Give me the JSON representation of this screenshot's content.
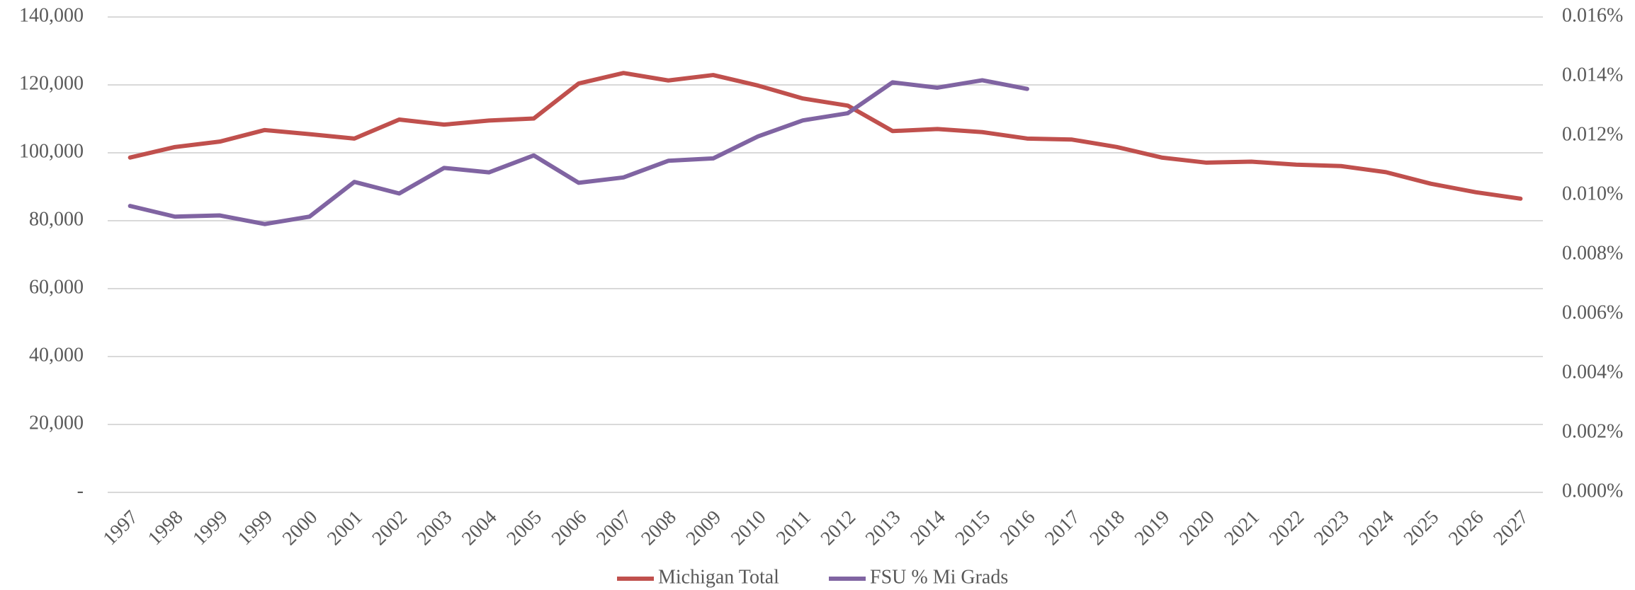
{
  "chart_data": {
    "type": "line",
    "categories": [
      "1997",
      "1998",
      "1999",
      "1999",
      "2000",
      "2001",
      "2002",
      "2003",
      "2004",
      "2005",
      "2006",
      "2007",
      "2008",
      "2009",
      "2010",
      "2011",
      "2012",
      "2013",
      "2014",
      "2015",
      "2016",
      "2017",
      "2018",
      "2019",
      "2020",
      "2021",
      "2022",
      "2023",
      "2024",
      "2025",
      "2026",
      "2027"
    ],
    "series": [
      {
        "name": "Michigan Total",
        "color": "#c0504d",
        "axis": "y",
        "values": [
          98600,
          101700,
          103300,
          106700,
          105500,
          104200,
          109800,
          108300,
          109500,
          110100,
          120400,
          123500,
          121300,
          122900,
          119800,
          116000,
          113900,
          106400,
          107000,
          106100,
          104200,
          103900,
          101700,
          98600,
          97100,
          97400,
          96500,
          96100,
          94300,
          90900,
          88400,
          86500
        ]
      },
      {
        "name": "FSU % Mi Grads",
        "color": "#8064a2",
        "axis": "y2",
        "values": [
          0.00964,
          0.00928,
          0.00932,
          0.00903,
          0.00928,
          0.01045,
          0.01006,
          0.01092,
          0.01077,
          0.01134,
          0.01042,
          0.0106,
          0.01116,
          0.01124,
          0.01198,
          0.01252,
          0.01276,
          0.0138,
          0.01362,
          0.01387,
          0.01358,
          null,
          null,
          null,
          null,
          null,
          null,
          null,
          null,
          null,
          null,
          null
        ]
      }
    ],
    "ylim": [
      0,
      140000
    ],
    "yticks": [
      {
        "value": 0,
        "label": "-"
      },
      {
        "value": 20000,
        "label": "20,000"
      },
      {
        "value": 40000,
        "label": "40,000"
      },
      {
        "value": 60000,
        "label": "60,000"
      },
      {
        "value": 80000,
        "label": "80,000"
      },
      {
        "value": 100000,
        "label": "100,000"
      },
      {
        "value": 120000,
        "label": "120,000"
      },
      {
        "value": 140000,
        "label": "140,000"
      }
    ],
    "y2lim": [
      0,
      0.016
    ],
    "y2ticks": [
      {
        "value": 0,
        "label": "0.000%"
      },
      {
        "value": 0.002,
        "label": "0.002%"
      },
      {
        "value": 0.004,
        "label": "0.004%"
      },
      {
        "value": 0.006,
        "label": "0.006%"
      },
      {
        "value": 0.008,
        "label": "0.008%"
      },
      {
        "value": 0.01,
        "label": "0.010%"
      },
      {
        "value": 0.012,
        "label": "0.012%"
      },
      {
        "value": 0.014,
        "label": "0.014%"
      },
      {
        "value": 0.016,
        "label": "0.016%"
      }
    ],
    "grid": true,
    "legend": "bottom"
  }
}
